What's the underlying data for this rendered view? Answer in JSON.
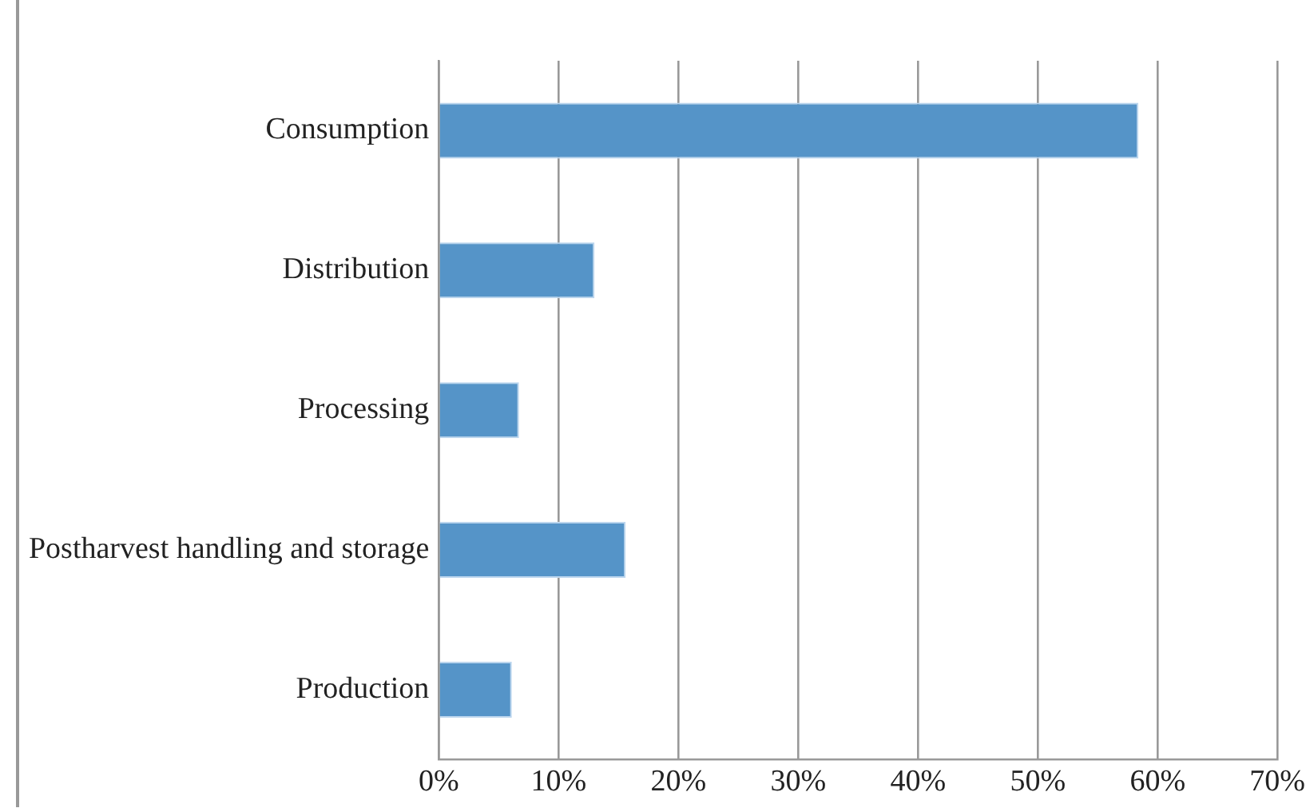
{
  "chart_data": {
    "type": "bar",
    "orientation": "horizontal",
    "categories": [
      "Consumption",
      "Distribution",
      "Processing",
      "Postharvest handling and storage",
      "Production"
    ],
    "values": [
      58.4,
      13.0,
      6.7,
      15.6,
      6.1
    ],
    "color": "#5594c8",
    "xlim": [
      0,
      70
    ],
    "xticks": [
      {
        "value": 0,
        "label": "0%"
      },
      {
        "value": 10,
        "label": "10%"
      },
      {
        "value": 20,
        "label": "20%"
      },
      {
        "value": 30,
        "label": "30%"
      },
      {
        "value": 40,
        "label": "40%"
      },
      {
        "value": 50,
        "label": "50%"
      },
      {
        "value": 60,
        "label": "60%"
      },
      {
        "value": 70,
        "label": "70%"
      }
    ],
    "grid": "x",
    "legend": false
  }
}
